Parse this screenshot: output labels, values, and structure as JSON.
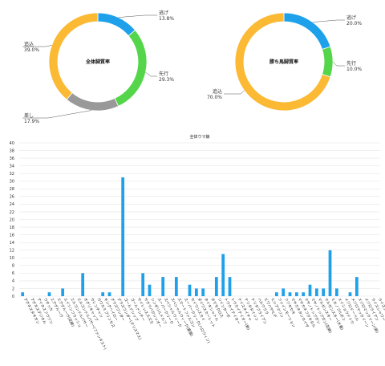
{
  "colors": {
    "nige": "#1ea1ea",
    "senko": "#55d64a",
    "sashi": "#999999",
    "oikomi": "#fbb934",
    "bar": "#1ea1ea"
  },
  "chart_data": [
    {
      "type": "pie",
      "title": "全体脚質率",
      "slices": [
        {
          "label": "逃げ",
          "value": 13.8,
          "display": "13.8%",
          "color": "#1ea1ea"
        },
        {
          "label": "先行",
          "value": 29.3,
          "display": "29.3%",
          "color": "#55d64a"
        },
        {
          "label": "差し",
          "value": 17.9,
          "display": "17.9%",
          "color": "#999999"
        },
        {
          "label": "追込",
          "value": 39.0,
          "display": "39.0%",
          "color": "#fbb934"
        }
      ]
    },
    {
      "type": "pie",
      "title": "勝ち馬脚質率",
      "slices": [
        {
          "label": "逃げ",
          "value": 20.0,
          "display": "20.0%",
          "color": "#1ea1ea"
        },
        {
          "label": "先行",
          "value": 10.0,
          "display": "10.0%",
          "color": "#55d64a"
        },
        {
          "label": "追込",
          "value": 70.0,
          "display": "70.0%",
          "color": "#fbb934"
        }
      ]
    },
    {
      "type": "bar",
      "title": "全体ウマ娘",
      "ylim": [
        0,
        40
      ],
      "yticks": [
        0,
        2,
        4,
        6,
        8,
        10,
        12,
        14,
        16,
        18,
        20,
        22,
        24,
        26,
        28,
        30,
        32,
        34,
        36,
        38,
        40
      ],
      "categories": [
        "アグネスタキオン",
        "アグネスデジタル",
        "アイネスフウジン",
        "ウオッカ",
        "エアグルーヴ",
        "エアグルーヴ(花嫁)",
        "エイシンフラッシュ",
        "エルコンドルパサー",
        "エルコンドルパサー(ファンタスト)",
        "オグリキャップ",
        "カレンチャン",
        "カワカミプリンセス",
        "キングヘイロー",
        "グラスワンダー",
        "グラスワンダー(クリスマス)",
        "ゴールドシップ",
        "ゴールドシチー",
        "サイレンススズカ",
        "サクラバクシンオー",
        "シンボリルドルフ",
        "スーパークリーク",
        "スペシャルウィーク",
        "スペシャルウィーク(夏服)",
        "スマートファルコン",
        "スーパークリーク(ハロウィン)",
        "セイウンスカイ",
        "ダイワスカーレット",
        "タイキシャトル",
        "タマモクロス",
        "ツインターボ",
        "トウカイテイオー",
        "トウカイテイオー(新)",
        "ナイスネイチャ",
        "ナリタタイシン",
        "ナリタブライアン",
        "ハルウララ",
        "ビワハヤヒデ",
        "ヒシアマゾン",
        "ファインモーション",
        "フジキセキ",
        "マチカネタンホイザ",
        "マチカネフクキタル",
        "マヤノトップガン",
        "マヤノトップガン(花嫁)",
        "マルゼンスキー",
        "マルゼンスキー(水着)",
        "ミホノブルボン",
        "メイショウドトウ",
        "メジロドーベル",
        "メジロマックイーン",
        "メジロマックイーン(新)",
        "メジロライアン",
        "ライスシャワー",
        "ライスシャワー(ハロウィン)"
      ],
      "values": [
        1,
        0,
        0,
        0,
        1,
        0,
        2,
        0,
        0,
        6,
        0,
        0,
        1,
        1,
        0,
        31,
        0,
        0,
        6,
        3,
        0,
        5,
        0,
        5,
        0,
        3,
        2,
        2,
        0,
        5,
        11,
        5,
        0,
        0,
        0,
        0,
        0,
        0,
        1,
        2,
        1,
        1,
        1,
        3,
        2,
        2,
        12,
        2,
        0,
        1,
        5,
        0,
        0,
        0
      ]
    }
  ]
}
